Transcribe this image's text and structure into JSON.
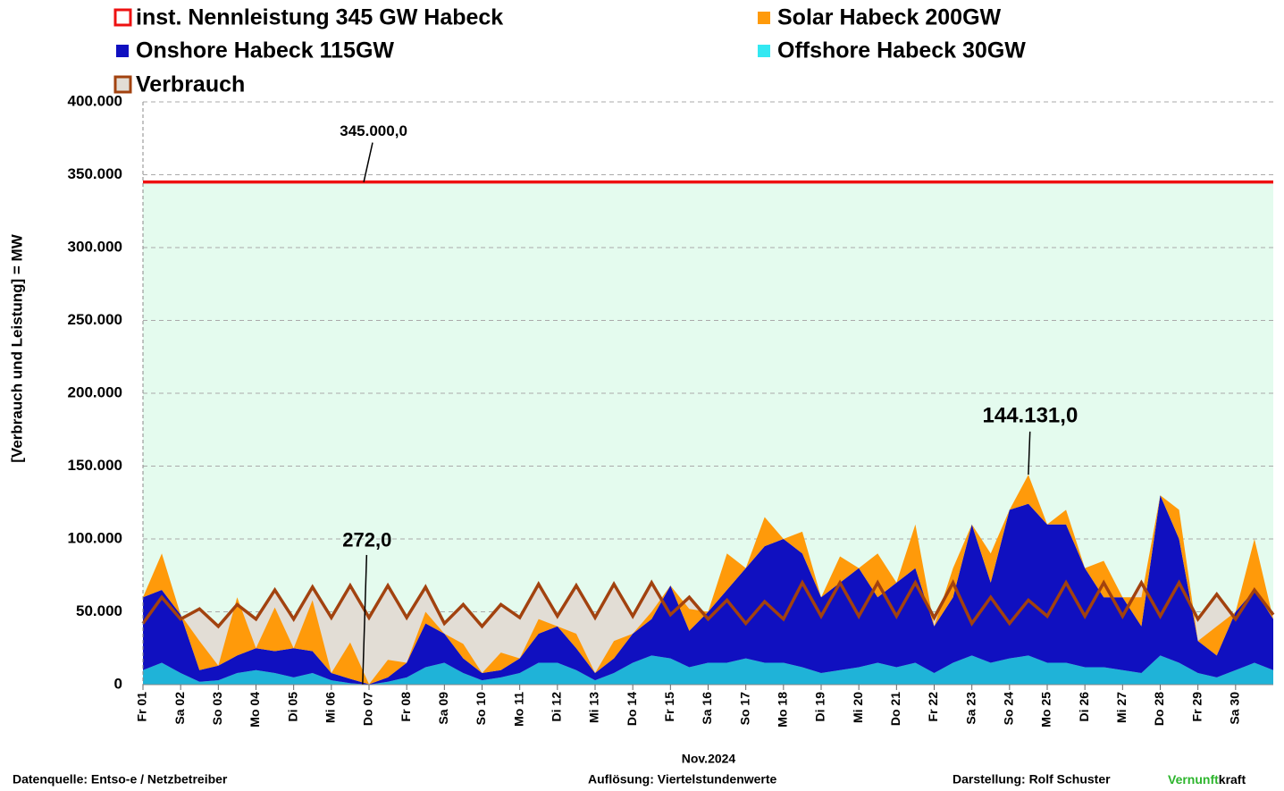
{
  "chart_data": {
    "type": "stacked-area",
    "y_label": "[Verbrauch und Leistung] = MW",
    "x_label": "Nov.2024",
    "xlim": [
      1,
      31
    ],
    "ylim": [
      0,
      400000
    ],
    "yticks": [
      0,
      {
        "value": 50000,
        "label": "50.000"
      },
      {
        "value": 100000,
        "label": "100.000"
      },
      {
        "value": 150000,
        "label": "150.000"
      },
      {
        "value": 200000,
        "label": "200.000"
      },
      {
        "value": 250000,
        "label": "250.000"
      },
      {
        "value": 300000,
        "label": "300.000"
      },
      {
        "value": 350000,
        "label": "350.000"
      },
      {
        "value": 400000,
        "label": "400.000"
      }
    ],
    "xticks": [
      {
        "value": 1,
        "label": "Fr 01"
      },
      {
        "value": 2,
        "label": "Sa 02"
      },
      {
        "value": 3,
        "label": "So 03"
      },
      {
        "value": 4,
        "label": "Mo 04"
      },
      {
        "value": 5,
        "label": "Di 05"
      },
      {
        "value": 6,
        "label": "Mi 06"
      },
      {
        "value": 7,
        "label": "Do 07"
      },
      {
        "value": 8,
        "label": "Fr 08"
      },
      {
        "value": 9,
        "label": "Sa 09"
      },
      {
        "value": 10,
        "label": "So 10"
      },
      {
        "value": 11,
        "label": "Mo 11"
      },
      {
        "value": 12,
        "label": "Di 12"
      },
      {
        "value": 13,
        "label": "Mi 13"
      },
      {
        "value": 14,
        "label": "Do 14"
      },
      {
        "value": 15,
        "label": "Fr 15"
      },
      {
        "value": 16,
        "label": "Sa 16"
      },
      {
        "value": 17,
        "label": "So 17"
      },
      {
        "value": 18,
        "label": "Mo 18"
      },
      {
        "value": 19,
        "label": "Di 19"
      },
      {
        "value": 20,
        "label": "Mi 20"
      },
      {
        "value": 21,
        "label": "Do 21"
      },
      {
        "value": 22,
        "label": "Fr 22"
      },
      {
        "value": 23,
        "label": "Sa 23"
      },
      {
        "value": 24,
        "label": "So 24"
      },
      {
        "value": 25,
        "label": "Mo 25"
      },
      {
        "value": 26,
        "label": "Di 26"
      },
      {
        "value": 27,
        "label": "Mi 27"
      },
      {
        "value": 28,
        "label": "Do 28"
      },
      {
        "value": 29,
        "label": "Fr 29"
      },
      {
        "value": 30,
        "label": "Sa 30"
      }
    ],
    "grid": true,
    "reference_line": {
      "name": "inst. Nennleistung 345 GW Habeck",
      "value": 345000,
      "color": "#ee1111",
      "fill": "#e4fbee"
    },
    "x": [
      1,
      1.5,
      2,
      2.5,
      3,
      3.5,
      4,
      4.5,
      5,
      5.5,
      6,
      6.5,
      7,
      7.5,
      8,
      8.5,
      9,
      9.5,
      10,
      10.5,
      11,
      11.5,
      12,
      12.5,
      13,
      13.5,
      14,
      14.5,
      15,
      15.5,
      16,
      16.5,
      17,
      17.5,
      18,
      18.5,
      19,
      19.5,
      20,
      20.5,
      21,
      21.5,
      22,
      22.5,
      23,
      23.5,
      24,
      24.5,
      25,
      25.5,
      26,
      26.5,
      27,
      27.5,
      28,
      28.5,
      29,
      29.5,
      30,
      30.5,
      31
    ],
    "series": [
      {
        "name": "Offshore Habeck 30GW",
        "color": "#1fb3d8",
        "legend_color": "#33e8f2",
        "values": [
          10000,
          15000,
          8000,
          2000,
          3000,
          8000,
          10000,
          8000,
          5000,
          8000,
          3000,
          1000,
          0,
          2000,
          5000,
          12000,
          15000,
          8000,
          3000,
          5000,
          8000,
          15000,
          15000,
          10000,
          3000,
          8000,
          15000,
          20000,
          18000,
          12000,
          15000,
          15000,
          18000,
          15000,
          15000,
          12000,
          8000,
          10000,
          12000,
          15000,
          12000,
          15000,
          8000,
          15000,
          20000,
          15000,
          18000,
          20000,
          15000,
          15000,
          12000,
          12000,
          10000,
          8000,
          20000,
          15000,
          8000,
          5000,
          10000,
          15000,
          10000
        ]
      },
      {
        "name": "Onshore Habeck 115GW",
        "color": "#1010c0",
        "values": [
          50000,
          50000,
          40000,
          8000,
          10000,
          12000,
          15000,
          15000,
          20000,
          15000,
          5000,
          3000,
          272,
          3000,
          10000,
          30000,
          20000,
          10000,
          5000,
          5000,
          10000,
          20000,
          25000,
          15000,
          5000,
          10000,
          20000,
          25000,
          50000,
          25000,
          35000,
          50000,
          62000,
          80000,
          85000,
          78000,
          52000,
          60000,
          68000,
          45000,
          58000,
          65000,
          32000,
          45000,
          90000,
          55000,
          102000,
          104131,
          95000,
          95000,
          68000,
          48000,
          50000,
          32000,
          110000,
          85000,
          22000,
          15000,
          40000,
          50000,
          35000
        ]
      },
      {
        "name": "Solar Habeck 200GW",
        "color": "#ff9a0a",
        "values": [
          0,
          25000,
          0,
          20000,
          0,
          40000,
          0,
          30000,
          0,
          35000,
          0,
          25000,
          0,
          12000,
          0,
          8000,
          0,
          10000,
          0,
          12000,
          0,
          10000,
          0,
          10000,
          0,
          12000,
          0,
          5000,
          0,
          15000,
          0,
          25000,
          0,
          20000,
          0,
          15000,
          0,
          18000,
          0,
          30000,
          0,
          30000,
          0,
          20000,
          0,
          20000,
          0,
          20000,
          0,
          10000,
          0,
          25000,
          0,
          20000,
          0,
          20000,
          0,
          20000,
          0,
          35000,
          0
        ]
      },
      {
        "name": "Verbrauch",
        "color": "#a2420f",
        "fill": "#e2ddd5",
        "line": true,
        "values": [
          42000,
          60000,
          45000,
          52000,
          40000,
          55000,
          45000,
          65000,
          45000,
          67000,
          46000,
          68000,
          46000,
          68000,
          46000,
          67000,
          42000,
          55000,
          40000,
          55000,
          46000,
          69000,
          47000,
          68000,
          46000,
          69000,
          47000,
          70000,
          48000,
          60000,
          45000,
          58000,
          42000,
          57000,
          45000,
          70000,
          47000,
          70000,
          47000,
          70000,
          47000,
          70000,
          46000,
          70000,
          42000,
          60000,
          42000,
          58000,
          47000,
          70000,
          47000,
          70000,
          47000,
          70000,
          47000,
          70000,
          45000,
          62000,
          45000,
          65000,
          48000
        ]
      }
    ],
    "annotations": [
      {
        "text": "345.000,0",
        "x": 6.86,
        "y": 345000
      },
      {
        "text": "144.131,0",
        "x": 24.5,
        "y": 144131
      },
      {
        "text": "272,0",
        "x": 6.83,
        "y": 272
      }
    ]
  },
  "footer": {
    "source": "Datenquelle: Entso-e  / Netzbetreiber",
    "resolution": "Auflösung: Viertelstundenwerte",
    "author": "Darstellung:  Rolf Schuster",
    "brand_1": "Vernunft",
    "brand_2": "kraft"
  }
}
